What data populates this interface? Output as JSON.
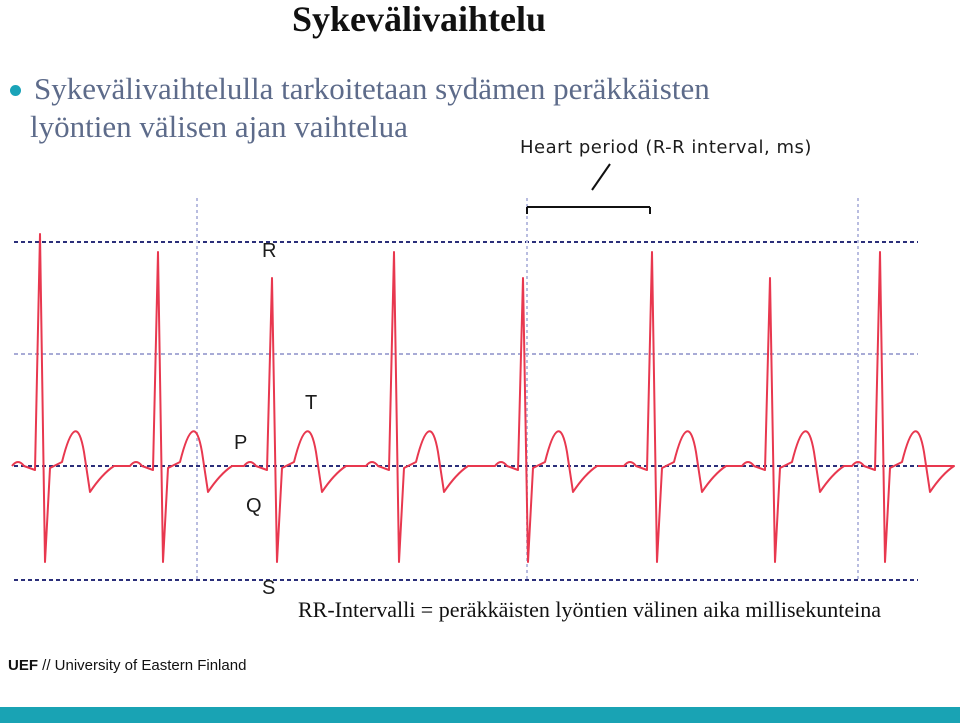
{
  "slide": {
    "title": "Sykevälivaihtelu",
    "bullet_line1": "Sykevälivaihtelulla tarkoitetaan sydämen peräkkäisten",
    "bullet_line2": "lyöntien välisen ajan vaihtelua",
    "annotation": "Heart period (R-R  interval, ms)",
    "caption": "RR-Intervalli = peräkkäisten lyöntien välinen aika millisekunteina",
    "footer_brand": "UEF",
    "footer_text": " // University of Eastern Finland"
  },
  "ecg_labels": {
    "R": "R",
    "T": "T",
    "P": "P",
    "Q": "Q",
    "S": "S"
  },
  "colors": {
    "trace": "#e8384f",
    "accent": "#19a3b4",
    "bullet_text": "#5d6b8a"
  }
}
